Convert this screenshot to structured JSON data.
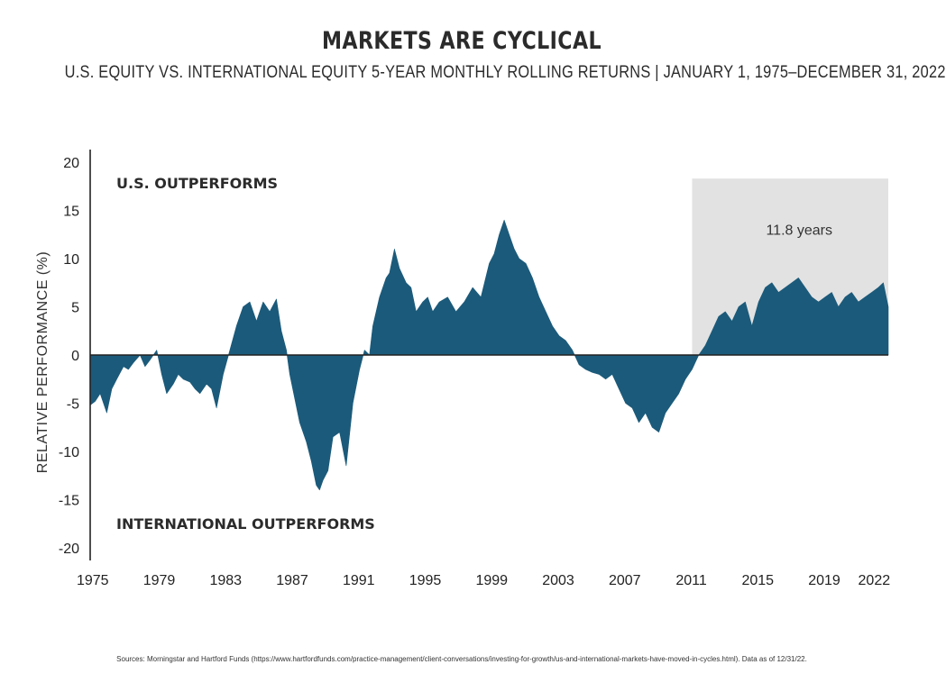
{
  "title": "MARKETS ARE CYCLICAL",
  "subtitle": "U.S. EQUITY VS. INTERNATIONAL EQUITY 5-YEAR MONTHLY ROLLING RETURNS | JANUARY 1, 1975–DECEMBER 31, 2022",
  "sources": "Sources: Morningstar and Hartford Funds (https://www.hartfordfunds.com/practice-management/client-conversations/investing-for-growth/us-and-international-markets-have-moved-in-cycles.html). Data as of 12/31/22.",
  "colors": {
    "area": "#1b5a7a",
    "shade": "#e2e2e2",
    "axis": "#222222"
  },
  "chart_data": {
    "type": "area",
    "ylabel": "RELATIVE PERFORMANCE (%)",
    "xlabel": "",
    "ylim": [
      -20,
      20
    ],
    "xlim": [
      1975,
      2023
    ],
    "x_ticks": [
      "1975",
      "1979",
      "1983",
      "1987",
      "1991",
      "1995",
      "1999",
      "2003",
      "2007",
      "2011",
      "2015",
      "2019",
      "2022"
    ],
    "y_ticks": [
      "20",
      "15",
      "10",
      "5",
      "0",
      "-5",
      "-10",
      "-15",
      "-20"
    ],
    "region_labels": {
      "top": "U.S. OUTPERFORMS",
      "bottom": "INTERNATIONAL OUTPERFORMS"
    },
    "annotation": {
      "text": "11.8 years",
      "x_start": 2011.2,
      "x_end": 2023.0
    },
    "series": [
      {
        "x": [
          1975.0,
          1975.3,
          1975.6,
          1976.0,
          1976.3,
          1976.6,
          1977.0,
          1977.3,
          1977.6,
          1978.0,
          1978.3,
          1978.6,
          1979.0,
          1979.3,
          1979.6,
          1980.0,
          1980.3,
          1980.6,
          1981.0,
          1981.3,
          1981.6,
          1982.0,
          1982.3,
          1982.6,
          1983.0,
          1983.4,
          1983.8,
          1984.2,
          1984.6,
          1985.0,
          1985.4,
          1985.8,
          1986.2,
          1986.5,
          1986.8,
          1987.0,
          1987.3,
          1987.6,
          1988.0,
          1988.3,
          1988.6,
          1988.8,
          1989.0,
          1989.3,
          1989.6,
          1990.0,
          1990.4,
          1990.8,
          1991.2,
          1991.5,
          1991.8,
          1992.0,
          1992.4,
          1992.8,
          1993.0,
          1993.3,
          1993.6,
          1994.0,
          1994.3,
          1994.6,
          1995.0,
          1995.3,
          1995.6,
          1996.0,
          1996.5,
          1997.0,
          1997.5,
          1998.0,
          1998.5,
          1999.0,
          1999.3,
          1999.6,
          1999.9,
          2000.2,
          2000.5,
          2000.8,
          2001.2,
          2001.6,
          2002.0,
          2002.4,
          2002.8,
          2003.2,
          2003.6,
          2004.0,
          2004.4,
          2004.8,
          2005.2,
          2005.6,
          2006.0,
          2006.4,
          2006.8,
          2007.2,
          2007.6,
          2008.0,
          2008.4,
          2008.8,
          2009.2,
          2009.6,
          2010.0,
          2010.4,
          2010.8,
          2011.2,
          2011.6,
          2012.0,
          2012.4,
          2012.8,
          2013.2,
          2013.6,
          2014.0,
          2014.4,
          2014.8,
          2015.2,
          2015.6,
          2016.0,
          2016.4,
          2016.8,
          2017.2,
          2017.6,
          2018.0,
          2018.4,
          2018.8,
          2019.2,
          2019.6,
          2020.0,
          2020.4,
          2020.8,
          2021.2,
          2021.6,
          2022.0,
          2022.4,
          2022.7,
          2023.0
        ],
        "values": [
          -5.2,
          -4.8,
          -4.0,
          -6.0,
          -3.5,
          -2.5,
          -1.2,
          -1.5,
          -0.8,
          0.0,
          -1.2,
          -0.5,
          0.5,
          -2.0,
          -4.0,
          -3.0,
          -2.0,
          -2.5,
          -2.8,
          -3.5,
          -4.0,
          -3.0,
          -3.5,
          -5.5,
          -2.0,
          0.5,
          3.0,
          5.0,
          5.5,
          3.5,
          5.5,
          4.5,
          5.8,
          2.5,
          0.5,
          -2.0,
          -4.5,
          -7.0,
          -9.0,
          -11.0,
          -13.5,
          -14.0,
          -13.0,
          -12.0,
          -8.5,
          -8.0,
          -11.5,
          -5.0,
          -1.5,
          0.5,
          0.0,
          3.0,
          6.0,
          8.0,
          8.5,
          11.0,
          9.0,
          7.5,
          7.0,
          4.5,
          5.5,
          6.0,
          4.5,
          5.5,
          6.0,
          4.5,
          5.5,
          7.0,
          6.0,
          9.5,
          10.5,
          12.5,
          14.0,
          12.5,
          11.0,
          10.0,
          9.5,
          8.0,
          6.0,
          4.5,
          3.0,
          2.0,
          1.5,
          0.5,
          -1.0,
          -1.5,
          -1.8,
          -2.0,
          -2.5,
          -2.0,
          -3.5,
          -5.0,
          -5.5,
          -7.0,
          -6.0,
          -7.5,
          -8.0,
          -6.0,
          -5.0,
          -4.0,
          -2.5,
          -1.5,
          0.0,
          1.0,
          2.5,
          4.0,
          4.5,
          3.5,
          5.0,
          5.5,
          3.0,
          5.5,
          7.0,
          7.5,
          6.5,
          7.0,
          7.5,
          8.0,
          7.0,
          6.0,
          5.5,
          6.0,
          6.5,
          5.0,
          6.0,
          6.5,
          5.5,
          6.0,
          6.5,
          7.0,
          7.5,
          5.0
        ]
      }
    ]
  }
}
